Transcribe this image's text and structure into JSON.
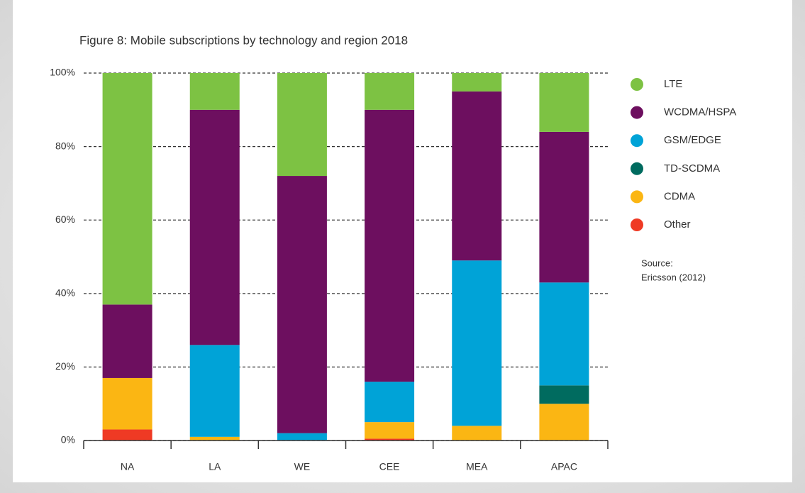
{
  "chart_data": {
    "type": "stacked_bar",
    "title": "Figure 8: Mobile subscriptions by technology and region 2018",
    "categories": [
      "NA",
      "LA",
      "WE",
      "CEE",
      "MEA",
      "APAC"
    ],
    "series": [
      {
        "name": "LTE",
        "color": "#7dc243",
        "values": [
          63,
          10,
          28,
          10,
          5,
          16
        ]
      },
      {
        "name": "WCDMA/HSPA",
        "color": "#6d0f5f",
        "values": [
          20,
          64,
          70,
          74,
          46,
          41
        ]
      },
      {
        "name": "GSM/EDGE",
        "color": "#00a3d7",
        "values": [
          0,
          25,
          2,
          11,
          45,
          28
        ]
      },
      {
        "name": "TD-SCDMA",
        "color": "#006b5f",
        "values": [
          0,
          0,
          0,
          0,
          0,
          5
        ]
      },
      {
        "name": "CDMA",
        "color": "#fbb613",
        "values": [
          14,
          1,
          0,
          4.5,
          4,
          10
        ]
      },
      {
        "name": "Other",
        "color": "#ef3a24",
        "values": [
          3,
          0,
          0,
          0.5,
          0,
          0
        ]
      }
    ],
    "ylim": [
      0,
      100
    ],
    "yticks": [
      {
        "value": 0,
        "label": "0%"
      },
      {
        "value": 20,
        "label": "20%"
      },
      {
        "value": 40,
        "label": "40%"
      },
      {
        "value": 60,
        "label": "60%"
      },
      {
        "value": 80,
        "label": "80%"
      },
      {
        "value": 100,
        "label": "100%"
      }
    ],
    "grid": true,
    "legend": "right",
    "source": [
      "Source:",
      "Ericsson (2012)"
    ]
  }
}
